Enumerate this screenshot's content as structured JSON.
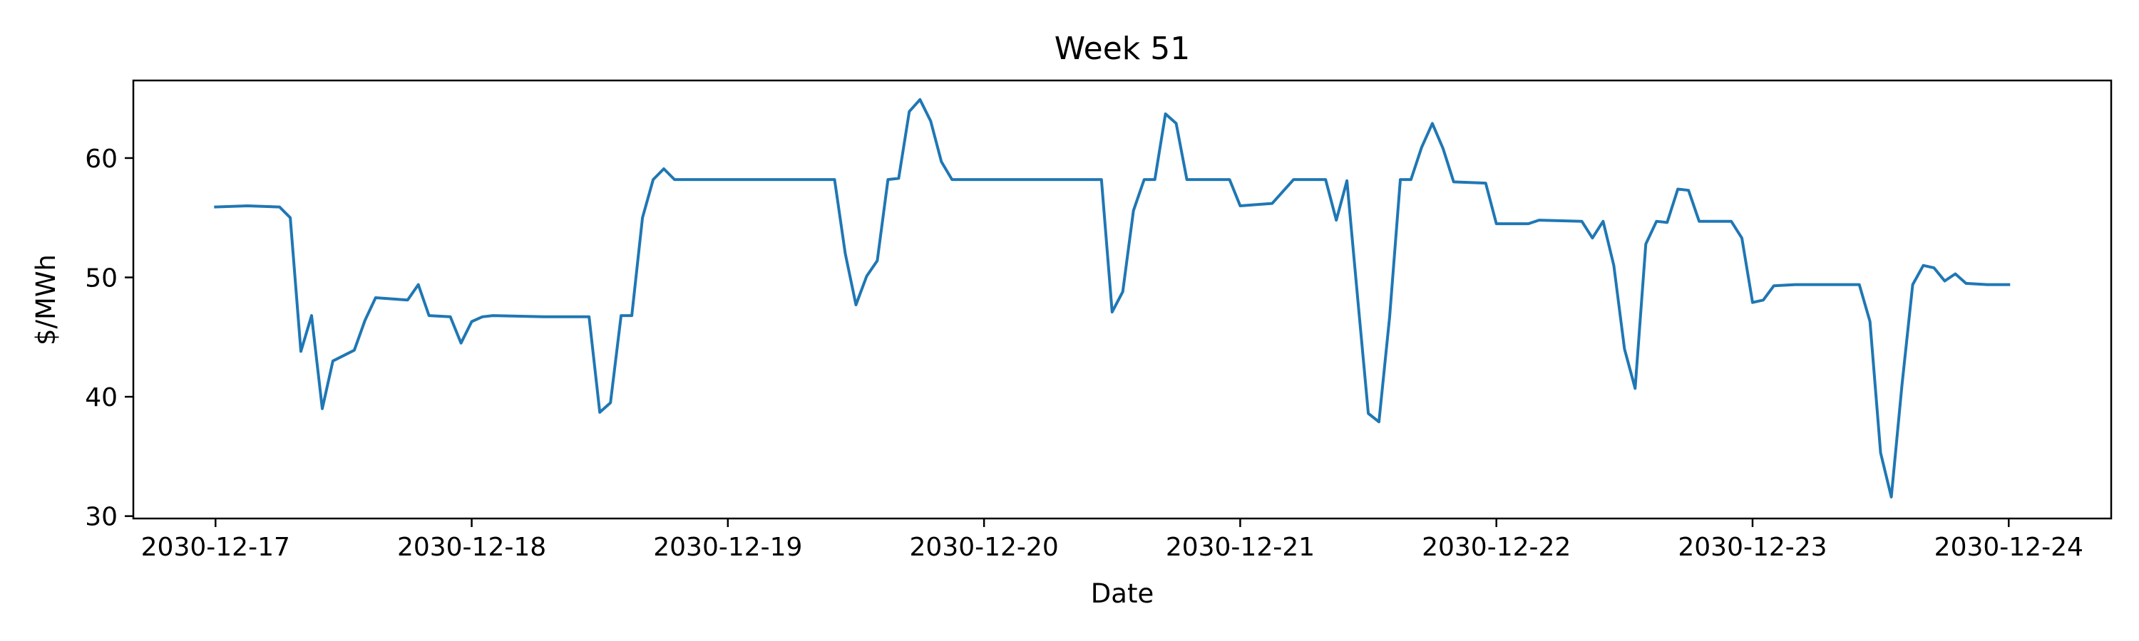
{
  "chart_data": {
    "type": "line",
    "title": "Week 51",
    "xlabel": "Date",
    "ylabel": "$/MWh",
    "xlim": [
      "2030-12-16T16:18",
      "2030-12-24T09:36"
    ],
    "ylim": [
      29.8,
      66.5
    ],
    "yticks": [
      30,
      40,
      50,
      60
    ],
    "xticks": [
      "2030-12-17",
      "2030-12-18",
      "2030-12-19",
      "2030-12-20",
      "2030-12-21",
      "2030-12-22",
      "2030-12-23",
      "2030-12-24"
    ],
    "grid": false,
    "legend": "none",
    "color": "#1f77b4",
    "series": [
      {
        "points": [
          [
            "2030-12-17T00:00",
            55.9
          ],
          [
            "2030-12-17T03:00",
            56.0
          ],
          [
            "2030-12-17T06:00",
            55.9
          ],
          [
            "2030-12-17T07:00",
            55.0
          ],
          [
            "2030-12-17T08:00",
            43.8
          ],
          [
            "2030-12-17T09:00",
            46.8
          ],
          [
            "2030-12-17T10:00",
            39.0
          ],
          [
            "2030-12-17T11:00",
            43.0
          ],
          [
            "2030-12-17T13:00",
            43.9
          ],
          [
            "2030-12-17T14:00",
            46.4
          ],
          [
            "2030-12-17T15:00",
            48.3
          ],
          [
            "2030-12-17T18:00",
            48.1
          ],
          [
            "2030-12-17T19:00",
            49.4
          ],
          [
            "2030-12-17T20:00",
            46.8
          ],
          [
            "2030-12-17T22:00",
            46.7
          ],
          [
            "2030-12-17T23:00",
            44.5
          ],
          [
            "2030-12-18T00:00",
            46.3
          ],
          [
            "2030-12-18T01:00",
            46.7
          ],
          [
            "2030-12-18T02:00",
            46.8
          ],
          [
            "2030-12-18T07:00",
            46.7
          ],
          [
            "2030-12-18T11:00",
            46.7
          ],
          [
            "2030-12-18T12:00",
            38.7
          ],
          [
            "2030-12-18T13:00",
            39.5
          ],
          [
            "2030-12-18T14:00",
            46.8
          ],
          [
            "2030-12-18T15:00",
            46.8
          ],
          [
            "2030-12-18T16:00",
            55.0
          ],
          [
            "2030-12-18T17:00",
            58.2
          ],
          [
            "2030-12-18T18:00",
            59.1
          ],
          [
            "2030-12-18T19:00",
            58.2
          ],
          [
            "2030-12-19T02:00",
            58.2
          ],
          [
            "2030-12-19T10:00",
            58.2
          ],
          [
            "2030-12-19T11:00",
            52.0
          ],
          [
            "2030-12-19T12:00",
            47.7
          ],
          [
            "2030-12-19T13:00",
            50.1
          ],
          [
            "2030-12-19T14:00",
            51.4
          ],
          [
            "2030-12-19T15:00",
            58.2
          ],
          [
            "2030-12-19T16:00",
            58.3
          ],
          [
            "2030-12-19T17:00",
            63.9
          ],
          [
            "2030-12-19T18:00",
            64.9
          ],
          [
            "2030-12-19T19:00",
            63.1
          ],
          [
            "2030-12-19T20:00",
            59.7
          ],
          [
            "2030-12-19T21:00",
            58.2
          ],
          [
            "2030-12-20T06:00",
            58.2
          ],
          [
            "2030-12-20T11:00",
            58.2
          ],
          [
            "2030-12-20T12:00",
            47.1
          ],
          [
            "2030-12-20T13:00",
            48.8
          ],
          [
            "2030-12-20T14:00",
            55.6
          ],
          [
            "2030-12-20T15:00",
            58.2
          ],
          [
            "2030-12-20T16:00",
            58.2
          ],
          [
            "2030-12-20T17:00",
            63.7
          ],
          [
            "2030-12-20T18:00",
            62.9
          ],
          [
            "2030-12-20T19:00",
            58.2
          ],
          [
            "2030-12-20T23:00",
            58.2
          ],
          [
            "2030-12-21T00:00",
            56.0
          ],
          [
            "2030-12-21T03:00",
            56.2
          ],
          [
            "2030-12-21T04:00",
            57.2
          ],
          [
            "2030-12-21T05:00",
            58.2
          ],
          [
            "2030-12-21T08:00",
            58.2
          ],
          [
            "2030-12-21T09:00",
            54.8
          ],
          [
            "2030-12-21T10:00",
            58.1
          ],
          [
            "2030-12-21T11:00",
            48.3
          ],
          [
            "2030-12-21T12:00",
            38.6
          ],
          [
            "2030-12-21T13:00",
            37.9
          ],
          [
            "2030-12-21T14:00",
            46.7
          ],
          [
            "2030-12-21T15:00",
            58.2
          ],
          [
            "2030-12-21T16:00",
            58.2
          ],
          [
            "2030-12-21T17:00",
            60.9
          ],
          [
            "2030-12-21T18:00",
            62.9
          ],
          [
            "2030-12-21T19:00",
            60.8
          ],
          [
            "2030-12-21T20:00",
            58.0
          ],
          [
            "2030-12-21T23:00",
            57.9
          ],
          [
            "2030-12-22T00:00",
            54.5
          ],
          [
            "2030-12-22T03:00",
            54.5
          ],
          [
            "2030-12-22T04:00",
            54.8
          ],
          [
            "2030-12-22T08:00",
            54.7
          ],
          [
            "2030-12-22T09:00",
            53.3
          ],
          [
            "2030-12-22T10:00",
            54.7
          ],
          [
            "2030-12-22T11:00",
            51.0
          ],
          [
            "2030-12-22T12:00",
            44.0
          ],
          [
            "2030-12-22T13:00",
            40.7
          ],
          [
            "2030-12-22T14:00",
            52.8
          ],
          [
            "2030-12-22T15:00",
            54.7
          ],
          [
            "2030-12-22T16:00",
            54.6
          ],
          [
            "2030-12-22T17:00",
            57.4
          ],
          [
            "2030-12-22T18:00",
            57.3
          ],
          [
            "2030-12-22T19:00",
            54.7
          ],
          [
            "2030-12-22T22:00",
            54.7
          ],
          [
            "2030-12-22T23:00",
            53.3
          ],
          [
            "2030-12-23T00:00",
            47.9
          ],
          [
            "2030-12-23T01:00",
            48.1
          ],
          [
            "2030-12-23T02:00",
            49.3
          ],
          [
            "2030-12-23T04:00",
            49.4
          ],
          [
            "2030-12-23T10:00",
            49.4
          ],
          [
            "2030-12-23T11:00",
            46.3
          ],
          [
            "2030-12-23T12:00",
            35.3
          ],
          [
            "2030-12-23T13:00",
            31.6
          ],
          [
            "2030-12-23T14:00",
            41.0
          ],
          [
            "2030-12-23T15:00",
            49.4
          ],
          [
            "2030-12-23T16:00",
            51.0
          ],
          [
            "2030-12-23T17:00",
            50.8
          ],
          [
            "2030-12-23T18:00",
            49.7
          ],
          [
            "2030-12-23T19:00",
            50.3
          ],
          [
            "2030-12-23T20:00",
            49.5
          ],
          [
            "2030-12-23T22:00",
            49.4
          ],
          [
            "2030-12-24T00:00",
            49.4
          ]
        ]
      }
    ]
  }
}
